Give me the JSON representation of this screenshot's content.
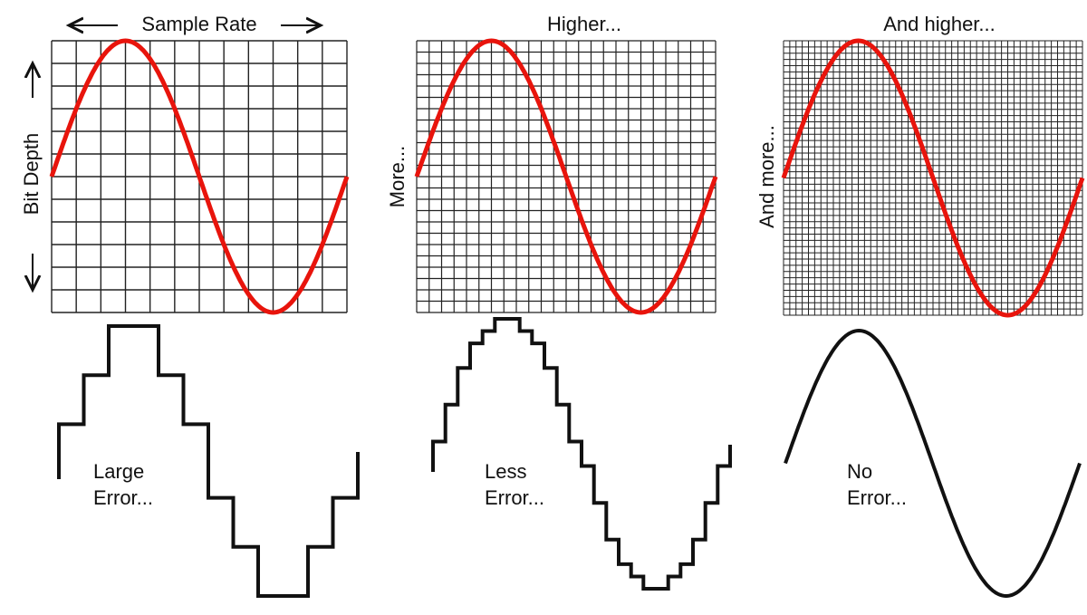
{
  "panels": [
    {
      "top_label": "Sample Rate",
      "side_label": "Bit Depth",
      "error_label": [
        "Large",
        "Error..."
      ]
    },
    {
      "top_label": "Higher...",
      "side_label": "More...",
      "error_label": [
        "Less",
        "Error..."
      ]
    },
    {
      "top_label": "And higher...",
      "side_label": "And more...",
      "error_label": [
        "No",
        "Error..."
      ]
    }
  ]
}
